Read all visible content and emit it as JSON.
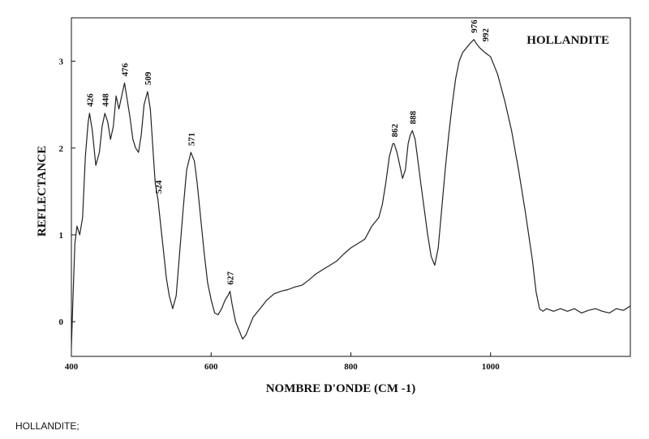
{
  "chart_data": {
    "type": "line",
    "title": "HOLLANDITE",
    "xlabel": "NOMBRE D'ONDE (CM -1)",
    "ylabel": "REFLECTANCE",
    "xlim": [
      400,
      1200
    ],
    "ylim": [
      -0.4,
      3.5
    ],
    "xticks": [
      400,
      600,
      800,
      1000
    ],
    "yticks": [
      0,
      1,
      2,
      3
    ],
    "grid": false,
    "series": [
      {
        "x": [
          400,
          402,
          405,
          408,
          412,
          416,
          420,
          424,
          426,
          430,
          435,
          440,
          444,
          448,
          452,
          456,
          460,
          464,
          468,
          472,
          476,
          480,
          484,
          488,
          492,
          496,
          500,
          504,
          509,
          513,
          517,
          520,
          524,
          528,
          532,
          536,
          540,
          545,
          550,
          555,
          560,
          565,
          571,
          576,
          580,
          585,
          590,
          595,
          600,
          605,
          610,
          615,
          620,
          624,
          627,
          630,
          635,
          640,
          645,
          650,
          655,
          660,
          670,
          680,
          690,
          700,
          710,
          720,
          730,
          740,
          750,
          760,
          770,
          780,
          790,
          800,
          810,
          820,
          830,
          840,
          845,
          850,
          855,
          860,
          862,
          866,
          870,
          874,
          878,
          882,
          885,
          888,
          892,
          896,
          900,
          905,
          910,
          915,
          920,
          925,
          930,
          935,
          940,
          945,
          950,
          955,
          960,
          965,
          970,
          976,
          980,
          985,
          992,
          1000,
          1010,
          1020,
          1030,
          1040,
          1050,
          1060,
          1065,
          1070,
          1075,
          1080,
          1090,
          1100,
          1110,
          1120,
          1130,
          1140,
          1150,
          1160,
          1170,
          1180,
          1190,
          1200
        ],
        "y": [
          -0.3,
          0.2,
          0.9,
          1.1,
          1.0,
          1.2,
          1.9,
          2.3,
          2.4,
          2.2,
          1.8,
          1.95,
          2.25,
          2.4,
          2.3,
          2.1,
          2.25,
          2.6,
          2.45,
          2.6,
          2.75,
          2.55,
          2.35,
          2.1,
          2.0,
          1.95,
          2.15,
          2.5,
          2.65,
          2.45,
          1.95,
          1.6,
          1.4,
          1.1,
          0.8,
          0.5,
          0.3,
          0.15,
          0.3,
          0.8,
          1.3,
          1.75,
          1.95,
          1.85,
          1.6,
          1.2,
          0.8,
          0.45,
          0.25,
          0.1,
          0.08,
          0.15,
          0.25,
          0.3,
          0.35,
          0.2,
          0.0,
          -0.1,
          -0.2,
          -0.15,
          -0.05,
          0.05,
          0.15,
          0.25,
          0.32,
          0.35,
          0.37,
          0.4,
          0.42,
          0.48,
          0.55,
          0.6,
          0.65,
          0.7,
          0.78,
          0.85,
          0.9,
          0.95,
          1.1,
          1.2,
          1.35,
          1.6,
          1.9,
          2.05,
          2.05,
          1.95,
          1.8,
          1.65,
          1.75,
          2.05,
          2.15,
          2.2,
          2.1,
          1.85,
          1.6,
          1.3,
          1.0,
          0.75,
          0.65,
          0.85,
          1.3,
          1.75,
          2.15,
          2.5,
          2.8,
          3.0,
          3.1,
          3.15,
          3.2,
          3.25,
          3.2,
          3.15,
          3.1,
          3.05,
          2.85,
          2.55,
          2.2,
          1.75,
          1.25,
          0.7,
          0.35,
          0.15,
          0.12,
          0.15,
          0.12,
          0.15,
          0.12,
          0.15,
          0.1,
          0.13,
          0.15,
          0.12,
          0.1,
          0.15,
          0.13,
          0.18
        ]
      }
    ],
    "annotations": [
      {
        "x": 426,
        "y": 2.4,
        "text": "426"
      },
      {
        "x": 448,
        "y": 2.4,
        "text": "448"
      },
      {
        "x": 476,
        "y": 2.75,
        "text": "476"
      },
      {
        "x": 509,
        "y": 2.65,
        "text": "509"
      },
      {
        "x": 524,
        "y": 1.4,
        "text": "524"
      },
      {
        "x": 571,
        "y": 1.95,
        "text": "571"
      },
      {
        "x": 627,
        "y": 0.35,
        "text": "627"
      },
      {
        "x": 862,
        "y": 2.05,
        "text": "862"
      },
      {
        "x": 888,
        "y": 2.2,
        "text": "888"
      },
      {
        "x": 976,
        "y": 3.25,
        "text": "976"
      },
      {
        "x": 992,
        "y": 3.15,
        "text": "992"
      }
    ]
  },
  "caption": "HOLLANDITE;",
  "colors": {
    "line": "#222222",
    "axis": "#111111",
    "background": "#ffffff"
  }
}
